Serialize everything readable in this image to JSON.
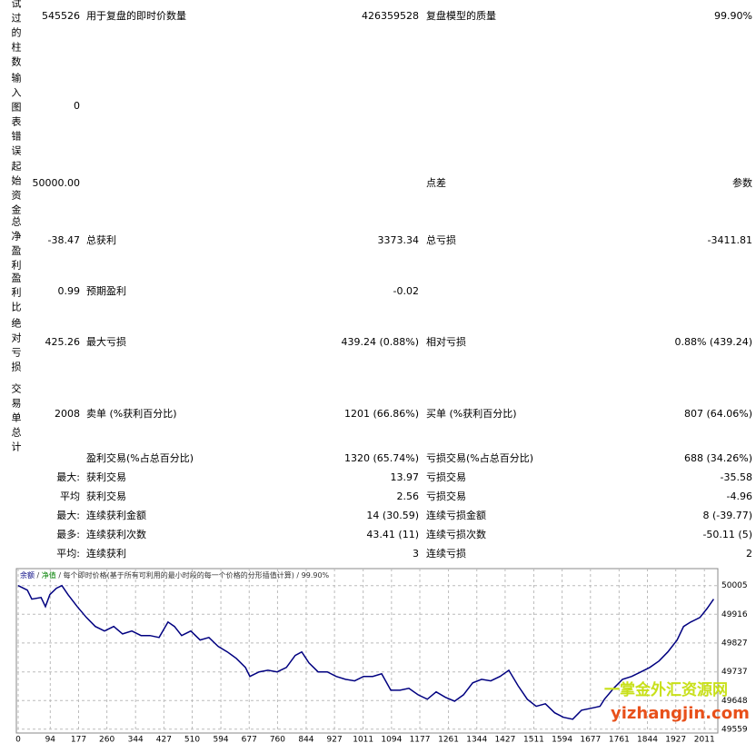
{
  "report": {
    "rows": [
      {
        "side_label": "试过的柱数",
        "value": "545526",
        "label1": "用于复盘的即时价数量",
        "value1": "426359528",
        "label2": "复盘模型的质量",
        "value2": "99.90%"
      },
      {
        "side_label": "输入图表错误",
        "value": "0"
      },
      {
        "side_label": "起始资金",
        "value": "50000.00",
        "label2": "点差",
        "value2": "参数"
      },
      {
        "side_label": "总净盈利",
        "value": "-38.47",
        "label1": "总获利",
        "value1": "3373.34",
        "label2": "总亏损",
        "value2": "-3411.81"
      },
      {
        "side_label": "盈利比",
        "value": "0.99",
        "label1": "预期盈利",
        "value1": "-0.02"
      },
      {
        "side_label": "绝对亏损",
        "value": "425.26",
        "label1": "最大亏损",
        "value1": "439.24 (0.88%)",
        "label2": "相对亏损",
        "value2": "0.88% (439.24)"
      },
      {
        "side_label": "交易单总计",
        "value": "2008",
        "label1": "卖单 (%获利百分比)",
        "value1": "1201 (66.86%)",
        "label2": "买单 (%获利百分比)",
        "value2": "807 (64.06%)"
      },
      {
        "label1": "盈利交易(%占总百分比)",
        "value1": "1320 (65.74%)",
        "label2": "亏损交易(%占总百分比)",
        "value2": "688 (34.26%)"
      },
      {
        "value": "最大:",
        "label1": "获利交易",
        "value1": "13.97",
        "label2": "亏损交易",
        "value2": "-35.58"
      },
      {
        "value": "平均",
        "label1": "获利交易",
        "value1": "2.56",
        "label2": "亏损交易",
        "value2": "-4.96"
      },
      {
        "value": "最大:",
        "label1": "连续获利金额",
        "value1": "14 (30.59)",
        "label2": "连续亏损金额",
        "value2": "8 (-39.77)"
      },
      {
        "value": "最多:",
        "label1": "连续获利次数",
        "value1": "43.41 (11)",
        "label2": "连续亏损次数",
        "value2": "-50.11 (5)"
      },
      {
        "value": "平均:",
        "label1": "连续获利",
        "value1": "3",
        "label2": "连续亏损",
        "value2": "2"
      }
    ]
  },
  "chart_data": {
    "type": "line",
    "separator": "/",
    "equity_label": "净值",
    "subtitle": "每个即时价格(基于所有可利用的最小时段的每一个价格的分形插值计算)",
    "quality": "99.90%",
    "series": [
      {
        "name": "余额",
        "color": "#000080",
        "x": [
          0,
          27,
          40,
          67,
          80,
          93,
          112,
          128,
          146,
          173,
          200,
          226,
          253,
          280,
          306,
          333,
          360,
          386,
          413,
          439,
          458,
          479,
          506,
          533,
          559,
          586,
          613,
          639,
          666,
          679,
          706,
          732,
          759,
          786,
          812,
          831,
          852,
          879,
          906,
          932,
          959,
          986,
          1012,
          1039,
          1065,
          1092,
          1119,
          1145,
          1172,
          1199,
          1225,
          1252,
          1279,
          1305,
          1332,
          1358,
          1385,
          1412,
          1438,
          1465,
          1492,
          1518,
          1545,
          1572,
          1598,
          1625,
          1651,
          1678,
          1705,
          1718,
          1745,
          1771,
          1798,
          1825,
          1851,
          1878,
          1904,
          1931,
          1950,
          1971,
          1998,
          2019,
          2038
        ],
        "values": [
          50005,
          49991,
          49963,
          49968,
          49940,
          49977,
          49997,
          50005,
          49977,
          49940,
          49906,
          49878,
          49864,
          49878,
          49855,
          49864,
          49850,
          49850,
          49844,
          49892,
          49878,
          49850,
          49864,
          49836,
          49844,
          49816,
          49799,
          49779,
          49751,
          49723,
          49737,
          49742,
          49737,
          49751,
          49788,
          49799,
          49765,
          49737,
          49737,
          49723,
          49714,
          49709,
          49723,
          49723,
          49731,
          49680,
          49680,
          49686,
          49666,
          49652,
          49675,
          49658,
          49646,
          49666,
          49703,
          49714,
          49709,
          49723,
          49742,
          49694,
          49652,
          49630,
          49638,
          49610,
          49596,
          49590,
          49618,
          49624,
          49630,
          49652,
          49686,
          49714,
          49723,
          49737,
          49751,
          49771,
          49799,
          49836,
          49878,
          49892,
          49906,
          49934,
          49963
        ]
      }
    ],
    "equity_color": "#008000",
    "xlim": [
      0,
      2045
    ],
    "ylim": [
      49550,
      50055
    ],
    "xticks": [
      0,
      94,
      177,
      260,
      344,
      427,
      510,
      594,
      677,
      760,
      844,
      927,
      1011,
      1094,
      1177,
      1261,
      1344,
      1427,
      1511,
      1594,
      1677,
      1761,
      1844,
      1927,
      2011
    ],
    "yticks": [
      50005,
      49916,
      49827,
      49737,
      49648,
      49559
    ],
    "grid": true
  },
  "watermark": {
    "title": "一掌金外汇资源网",
    "url": "yizhangjin.com"
  }
}
